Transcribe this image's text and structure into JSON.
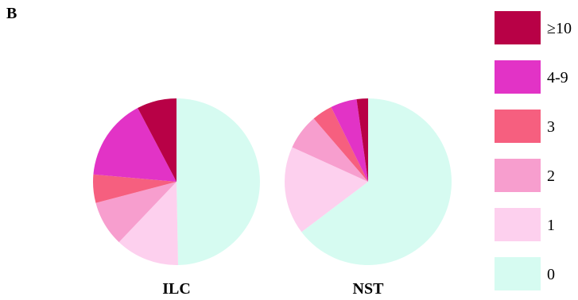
{
  "panel_letter": "B",
  "chart_data": {
    "type": "pie",
    "categories": [
      "0",
      "1",
      "2",
      "3",
      "4-9",
      "≥10"
    ],
    "colors": [
      "#d6fbf1",
      "#fdd0ee",
      "#f79ece",
      "#f65f7f",
      "#e233c6",
      "#b80146"
    ],
    "legend_order": [
      "≥10",
      "4-9",
      "3",
      "2",
      "1",
      "0"
    ],
    "legend_position": "right",
    "start_angle_deg": 0,
    "direction": "clockwise",
    "pies": [
      {
        "name": "ILC",
        "values": [
          49.7,
          12.4,
          8.8,
          5.5,
          15.9,
          7.7
        ]
      },
      {
        "name": "NST",
        "values": [
          64.7,
          17.1,
          6.9,
          4.0,
          5.1,
          2.2
        ]
      }
    ]
  }
}
